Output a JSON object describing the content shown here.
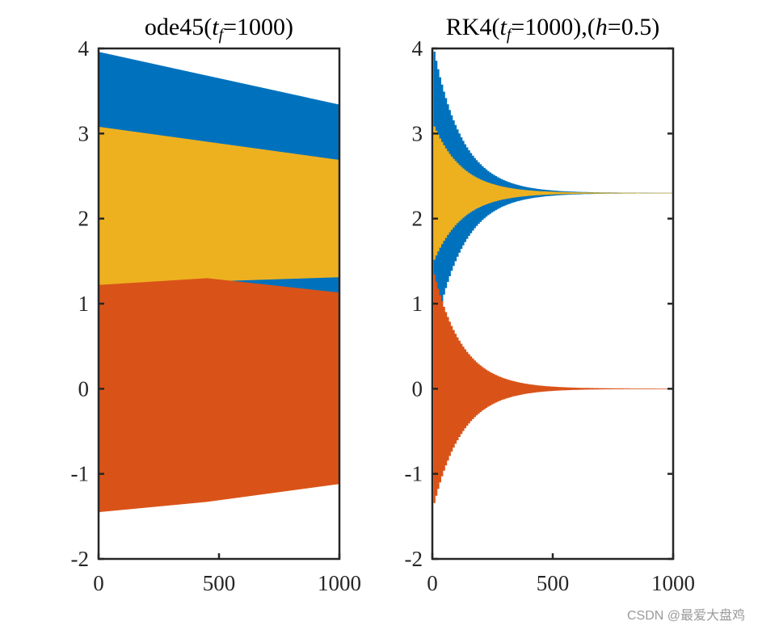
{
  "chart_data": [
    {
      "type": "area",
      "name": "left-panel",
      "title": {
        "prefix": "ode45(",
        "t": "t",
        "sub": "f",
        "eq": "=1000)"
      },
      "xlim": [
        0,
        1000
      ],
      "ylim": [
        -2,
        4
      ],
      "xticks": [
        "0",
        "500",
        "1000"
      ],
      "yticks": [
        "-2",
        "-1",
        "0",
        "1",
        "2",
        "3",
        "4"
      ],
      "series": [
        {
          "name": "blue",
          "color": "#0072BD",
          "x": [
            0,
            1000
          ],
          "upper": [
            3.96,
            3.34
          ],
          "lower": [
            1.22,
            1.11
          ]
        },
        {
          "name": "yellow",
          "color": "#EDB120",
          "x": [
            0,
            1000
          ],
          "upper": [
            3.08,
            2.69
          ],
          "lower": [
            1.22,
            1.31
          ]
        },
        {
          "name": "red",
          "color": "#D95319",
          "x": [
            0,
            450,
            1000
          ],
          "upper": [
            1.22,
            1.3,
            1.13
          ],
          "lower": [
            -1.45,
            -1.33,
            -1.12
          ]
        }
      ]
    },
    {
      "type": "area",
      "name": "right-panel",
      "title": {
        "prefix": "RK4(",
        "t": "t",
        "sub": "f",
        "eq": "=1000),(",
        "h": "h",
        "tail": "=0.5)"
      },
      "xlim": [
        0,
        1000
      ],
      "ylim": [
        -2,
        4
      ],
      "xticks": [
        "0",
        "500",
        "1000"
      ],
      "yticks": [
        "-2",
        "-1",
        "0",
        "1",
        "2",
        "3",
        "4"
      ],
      "series": [
        {
          "name": "blue",
          "color": "#0072BD",
          "center": 2.3,
          "amp": 1.66,
          "decay": 120,
          "x0": 5
        },
        {
          "name": "yellow",
          "color": "#EDB120",
          "center": 2.3,
          "amp": 0.78,
          "decay": 120,
          "x0": 5
        },
        {
          "name": "red",
          "color": "#D95319",
          "center": 0.0,
          "amp": 1.34,
          "decay": 120,
          "x0": 5
        }
      ]
    }
  ],
  "watermark": "CSDN @最爱大盘鸡"
}
